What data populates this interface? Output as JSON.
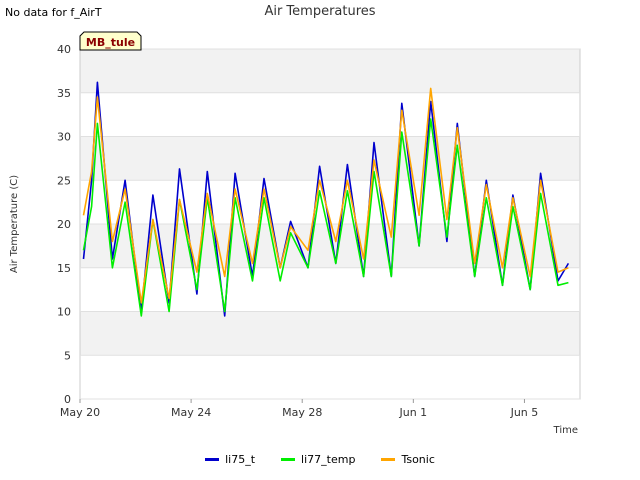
{
  "nodata_text": "No data for f_AirT",
  "chart_data": {
    "type": "line",
    "title": "Air Temperatures",
    "xlabel": "Time",
    "ylabel": "Air Temperature (C)",
    "ylim": [
      0,
      40
    ],
    "yticks": [
      0,
      5,
      10,
      15,
      20,
      25,
      30,
      35,
      40
    ],
    "xlim": [
      "2023-05-20",
      "2023-06-07"
    ],
    "xticks": [
      {
        "date": "2023-05-20",
        "label": "May 20"
      },
      {
        "date": "2023-05-24",
        "label": "May 24"
      },
      {
        "date": "2023-05-28",
        "label": "May 28"
      },
      {
        "date": "2023-06-01",
        "label": "Jun 1"
      },
      {
        "date": "2023-06-05",
        "label": "Jun 5"
      }
    ],
    "grid": true,
    "legend_position": "bottom",
    "site_label": "MB_tule",
    "series": [
      {
        "name": "li75_t",
        "color": "#0000cc",
        "x": [
          "2023-05-20T03:00",
          "2023-05-20T10:00",
          "2023-05-20T15:00",
          "2023-05-21T04:00",
          "2023-05-21T15:00",
          "2023-05-22T05:00",
          "2023-05-22T15:00",
          "2023-05-23T05:00",
          "2023-05-23T14:00",
          "2023-05-24T05:00",
          "2023-05-24T14:00",
          "2023-05-25T05:00",
          "2023-05-25T14:00",
          "2023-05-26T05:00",
          "2023-05-26T15:00",
          "2023-05-27T05:00",
          "2023-05-27T14:00",
          "2023-05-28T05:00",
          "2023-05-28T15:00",
          "2023-05-29T05:00",
          "2023-05-29T15:00",
          "2023-05-30T05:00",
          "2023-05-30T14:00",
          "2023-05-31T05:00",
          "2023-05-31T14:00",
          "2023-06-01T05:00",
          "2023-06-01T15:00",
          "2023-06-02T05:00",
          "2023-06-02T14:00",
          "2023-06-03T05:00",
          "2023-06-03T15:00",
          "2023-06-04T05:00",
          "2023-06-04T14:00",
          "2023-06-05T05:00",
          "2023-06-05T14:00",
          "2023-06-06T05:00",
          "2023-06-06T14:00"
        ],
        "y": [
          16,
          25,
          36.2,
          16,
          25,
          10,
          23.3,
          11,
          26.3,
          12,
          26,
          9.5,
          25.8,
          14,
          25.2,
          15,
          20.3,
          15,
          26.6,
          15.5,
          26.8,
          14,
          29.3,
          14,
          33.8,
          17.5,
          34,
          18,
          31.5,
          14,
          25,
          13,
          23.3,
          12.5,
          25.8,
          13.5,
          15.5
        ]
      },
      {
        "name": "li77_temp",
        "color": "#00ee00",
        "x": [
          "2023-05-20T03:00",
          "2023-05-20T10:00",
          "2023-05-20T15:00",
          "2023-05-21T04:00",
          "2023-05-21T15:00",
          "2023-05-22T05:00",
          "2023-05-22T15:00",
          "2023-05-23T05:00",
          "2023-05-23T14:00",
          "2023-05-24T05:00",
          "2023-05-24T14:00",
          "2023-05-25T05:00",
          "2023-05-25T14:00",
          "2023-05-26T05:00",
          "2023-05-26T15:00",
          "2023-05-27T05:00",
          "2023-05-27T14:00",
          "2023-05-28T05:00",
          "2023-05-28T15:00",
          "2023-05-29T05:00",
          "2023-05-29T15:00",
          "2023-05-30T05:00",
          "2023-05-30T14:00",
          "2023-05-31T05:00",
          "2023-05-31T14:00",
          "2023-06-01T05:00",
          "2023-06-01T15:00",
          "2023-06-02T05:00",
          "2023-06-02T14:00",
          "2023-06-03T05:00",
          "2023-06-03T15:00",
          "2023-06-04T05:00",
          "2023-06-04T14:00",
          "2023-06-05T05:00",
          "2023-06-05T14:00",
          "2023-06-06T05:00",
          "2023-06-06T14:00"
        ],
        "y": [
          17,
          22,
          31.5,
          15,
          22.5,
          9.5,
          20.5,
          10,
          22.8,
          12.5,
          23,
          10,
          23,
          13.5,
          23,
          13.5,
          19,
          15,
          23.8,
          15.5,
          23.8,
          14,
          26,
          14,
          30.5,
          17.5,
          32,
          18.5,
          29,
          14,
          23,
          13,
          22,
          12.5,
          23.5,
          13,
          13.3
        ]
      },
      {
        "name": "Tsonic",
        "color": "#ffa500",
        "x": [
          "2023-05-20T03:00",
          "2023-05-20T10:00",
          "2023-05-20T15:00",
          "2023-05-21T04:00",
          "2023-05-21T15:00",
          "2023-05-22T05:00",
          "2023-05-22T15:00",
          "2023-05-23T05:00",
          "2023-05-23T14:00",
          "2023-05-24T05:00",
          "2023-05-24T14:00",
          "2023-05-25T05:00",
          "2023-05-25T14:00",
          "2023-05-26T05:00",
          "2023-05-26T15:00",
          "2023-05-27T05:00",
          "2023-05-27T14:00",
          "2023-05-28T05:00",
          "2023-05-28T15:00",
          "2023-05-29T05:00",
          "2023-05-29T15:00",
          "2023-05-30T05:00",
          "2023-05-30T14:00",
          "2023-05-31T05:00",
          "2023-05-31T14:00",
          "2023-06-01T05:00",
          "2023-06-01T15:00",
          "2023-06-02T05:00",
          "2023-06-02T14:00",
          "2023-06-03T05:00",
          "2023-06-03T15:00",
          "2023-06-04T05:00",
          "2023-06-04T14:00",
          "2023-06-05T05:00",
          "2023-06-05T14:00",
          "2023-06-06T05:00",
          "2023-06-06T14:00"
        ],
        "y": [
          21,
          26,
          34.5,
          18,
          24,
          11,
          20.5,
          11.5,
          22.8,
          14.5,
          23.5,
          14,
          24,
          15.5,
          24,
          15,
          19.7,
          17,
          25,
          18,
          25,
          16,
          27.3,
          18.5,
          33,
          21,
          35.5,
          20.5,
          31,
          15.5,
          24.5,
          15,
          23,
          14,
          25,
          14.5,
          15
        ]
      }
    ]
  }
}
